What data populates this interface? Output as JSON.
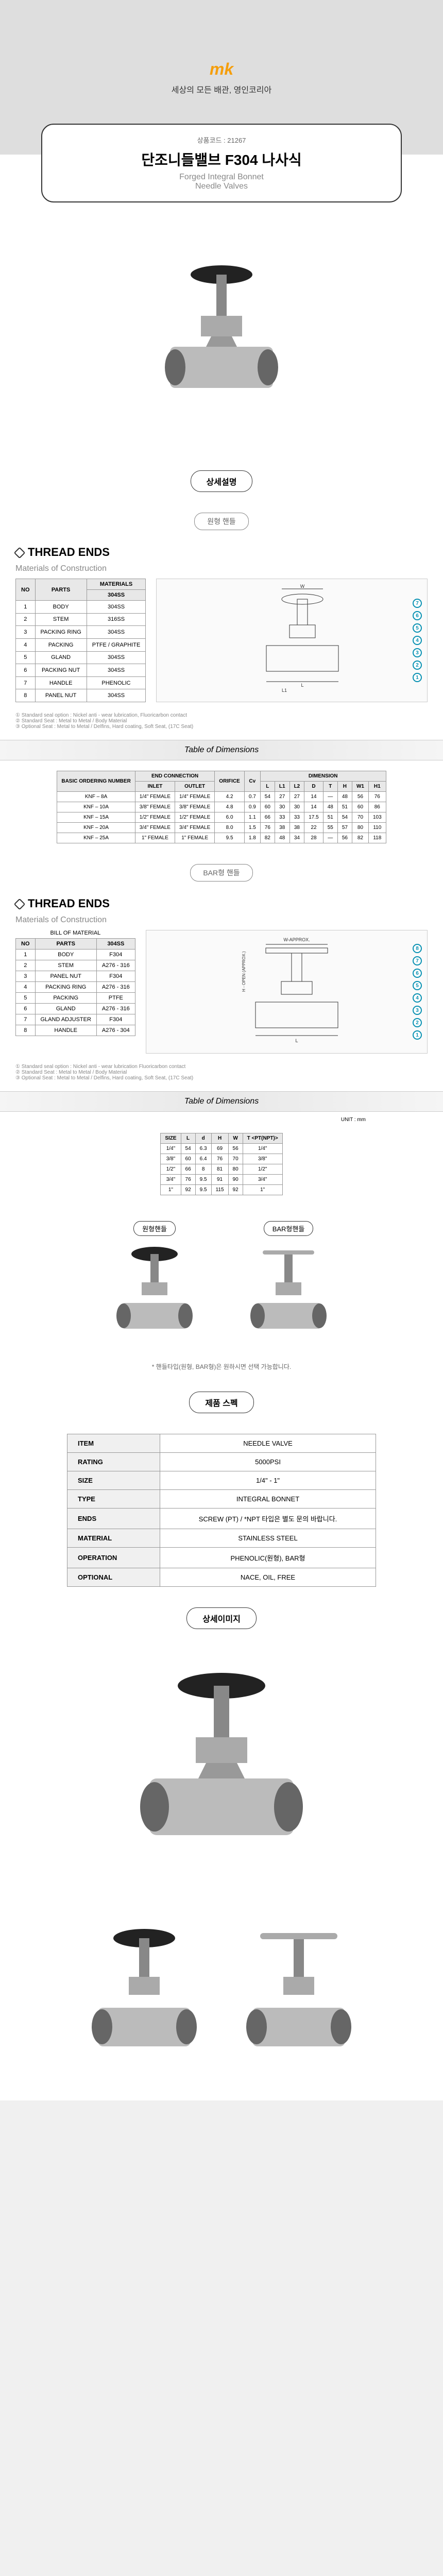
{
  "header": {
    "logo": "mk",
    "tagline": "세상의 모든 배관, 영인코리아"
  },
  "title_card": {
    "code_label": "상품코드 : 21267",
    "title": "단조니들밸브 F304 나사식",
    "subtitle1": "Forged Integral Bonnet",
    "subtitle2": "Needle Valves"
  },
  "labels": {
    "detail": "상세설명",
    "round_handle": "원형 핸들",
    "bar_handle": "BAR형 핸들",
    "thread_ends": "THREAD ENDS",
    "materials": "Materials of Construction",
    "bill_of_material": "BILL OF MATERIAL",
    "table_dimensions": "Table of Dimensions",
    "product_spec": "제품 스펙",
    "detail_image": "상세이미지",
    "unit_mm": "UNIT : mm",
    "round_label": "원형핸들",
    "bar_label": "BAR형핸들",
    "handle_note": "* 핸들타입(원형, BAR형)은 원하시면 선택 가능합니다."
  },
  "materials1": {
    "headers": [
      "NO",
      "PARTS",
      "MATERIALS"
    ],
    "subheader": "304SS",
    "rows": [
      [
        "1",
        "BODY",
        "304SS"
      ],
      [
        "2",
        "STEM",
        "316SS"
      ],
      [
        "3",
        "PACKING RING",
        "304SS"
      ],
      [
        "4",
        "PACKING",
        "PTFE / GRAPHITE"
      ],
      [
        "5",
        "GLAND",
        "304SS"
      ],
      [
        "6",
        "PACKING NUT",
        "304SS"
      ],
      [
        "7",
        "HANDLE",
        "PHENOLIC"
      ],
      [
        "8",
        "PANEL NUT",
        "304SS"
      ]
    ]
  },
  "footnotes1": [
    "① Standard seal option : Nickel anti - wear lubrication, Fluoricarbon contact",
    "② Standard Seat : Metal to Metal / Body Material",
    "③ Optional Seat : Metal to Metal / Delfins, Hard coating, Soft Seat, (17C Seat)"
  ],
  "dimensions1": {
    "group_headers": [
      "BASIC ORDERING NUMBER",
      "END CONNECTION",
      "ORIFICE",
      "Cv",
      "DIMENSION"
    ],
    "headers": [
      "",
      "INLET",
      "OUTLET",
      "",
      "",
      "L",
      "L1",
      "L2",
      "D",
      "T",
      "H",
      "W1",
      "H1"
    ],
    "rows": [
      [
        "KNF – 8A",
        "1/4\" FEMALE",
        "1/4\" FEMALE",
        "4.2",
        "0.7",
        "54",
        "27",
        "27",
        "14",
        "—",
        "48",
        "56",
        "76"
      ],
      [
        "KNF – 10A",
        "3/8\" FEMALE",
        "3/8\" FEMALE",
        "4.8",
        "0.9",
        "60",
        "30",
        "30",
        "14",
        "48",
        "51",
        "60",
        "86"
      ],
      [
        "KNF – 15A",
        "1/2\" FEMALE",
        "1/2\" FEMALE",
        "6.0",
        "1.1",
        "66",
        "33",
        "33",
        "17.5",
        "51",
        "54",
        "70",
        "103"
      ],
      [
        "KNF – 20A",
        "3/4\" FEMALE",
        "3/4\" FEMALE",
        "8.0",
        "1.5",
        "76",
        "38",
        "38",
        "22",
        "55",
        "57",
        "80",
        "110"
      ],
      [
        "KNF – 25A",
        "1\" FEMALE",
        "1\" FEMALE",
        "9.5",
        "1.8",
        "82",
        "48",
        "34",
        "28",
        "—",
        "56",
        "82",
        "118"
      ]
    ]
  },
  "materials2": {
    "headers": [
      "NO",
      "PARTS",
      "304SS"
    ],
    "rows": [
      [
        "1",
        "BODY",
        "F304"
      ],
      [
        "2",
        "STEM",
        "A276 - 316"
      ],
      [
        "3",
        "PANEL NUT",
        "F304"
      ],
      [
        "4",
        "PACKING RING",
        "A276 - 316"
      ],
      [
        "5",
        "PACKING",
        "PTFE"
      ],
      [
        "6",
        "GLAND",
        "A276 - 316"
      ],
      [
        "7",
        "GLAND ADJUSTER",
        "F304"
      ],
      [
        "8",
        "HANDLE",
        "A276 - 304"
      ]
    ]
  },
  "footnotes2": [
    "① Standard seal option : Nickel anti - wear lubrication Fluoricarbon contact",
    "② Standard Seat : Metal to Metal / Body Material",
    "③ Optional Seat : Metal to Metal / Delfins, Hard coating, Soft Seat, (17C Seat)"
  ],
  "dimensions2": {
    "headers": [
      "SIZE",
      "L",
      "d",
      "H",
      "W",
      "T <PT(NPT)>"
    ],
    "rows": [
      [
        "1/4\"",
        "54",
        "6.3",
        "69",
        "56",
        "1/4\""
      ],
      [
        "3/8\"",
        "60",
        "6.4",
        "76",
        "70",
        "3/8\""
      ],
      [
        "1/2\"",
        "66",
        "8",
        "81",
        "80",
        "1/2\""
      ],
      [
        "3/4\"",
        "76",
        "9.5",
        "91",
        "90",
        "3/4\""
      ],
      [
        "1\"",
        "92",
        "9.5",
        "115",
        "92",
        "1\""
      ]
    ]
  },
  "spec": {
    "rows": [
      [
        "ITEM",
        "NEEDLE VALVE"
      ],
      [
        "RATING",
        "5000PSI"
      ],
      [
        "SIZE",
        "1/4\" - 1\""
      ],
      [
        "TYPE",
        "INTEGRAL BONNET"
      ],
      [
        "ENDS",
        "SCREW (PT) / *NPT 타입은 별도 문의 바랍니다."
      ],
      [
        "MATERIAL",
        "STAINLESS STEEL"
      ],
      [
        "OPERATION",
        "PHENOLIC(원형), BAR형"
      ],
      [
        "OPTIONAL",
        "NACE, OIL, FREE"
      ]
    ]
  },
  "diagram_labels": {
    "w": "W",
    "w_approx": "W-APPROX.",
    "h_open": "H - OPEN (APPROX.)",
    "l": "L",
    "l1": "L1"
  },
  "colors": {
    "accent": "#f59e0b",
    "annotation": "#0891b2",
    "table_header": "#e8e8e8",
    "border": "#999999"
  }
}
